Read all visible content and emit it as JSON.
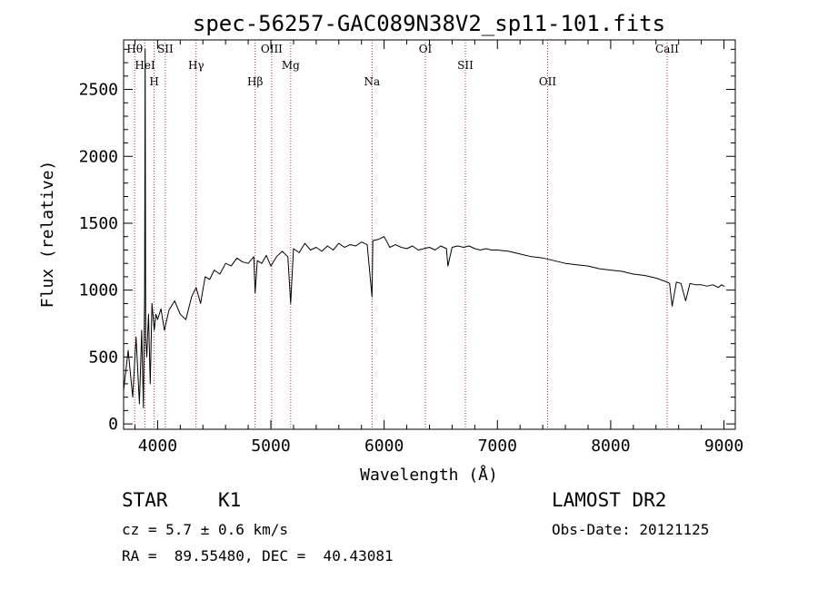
{
  "chart_data": {
    "type": "line",
    "title": "spec-56257-GAC089N38V2_sp11-101.fits",
    "xlabel": "Wavelength (Å)",
    "ylabel": "Flux (relative)",
    "xlim": [
      3700,
      9100
    ],
    "ylim": [
      -40,
      2870
    ],
    "xticks": [
      4000,
      5000,
      6000,
      7000,
      8000,
      9000
    ],
    "xtick_labels": [
      "4000",
      "5000",
      "6000",
      "7000",
      "8000",
      "9000"
    ],
    "yticks": [
      0,
      500,
      1000,
      1500,
      2000,
      2500
    ],
    "ytick_labels": [
      "0",
      "500",
      "1000",
      "1500",
      "2000",
      "2500"
    ],
    "grid": false,
    "series": [
      {
        "color": "#000000",
        "x": [
          3700,
          3740,
          3780,
          3810,
          3840,
          3860,
          3875,
          3885,
          3890,
          3895,
          3905,
          3920,
          3935,
          3950,
          3970,
          3985,
          4000,
          4030,
          4060,
          4100,
          4150,
          4200,
          4250,
          4300,
          4340,
          4380,
          4420,
          4460,
          4500,
          4550,
          4600,
          4650,
          4700,
          4750,
          4800,
          4850,
          4861,
          4880,
          4920,
          4960,
          5000,
          5050,
          5100,
          5150,
          5175,
          5200,
          5250,
          5300,
          5350,
          5400,
          5450,
          5500,
          5550,
          5600,
          5650,
          5700,
          5750,
          5800,
          5850,
          5893,
          5900,
          5950,
          6000,
          6050,
          6100,
          6150,
          6200,
          6250,
          6300,
          6350,
          6400,
          6450,
          6500,
          6550,
          6563,
          6600,
          6650,
          6700,
          6750,
          6800,
          6850,
          6900,
          6950,
          7000,
          7100,
          7200,
          7300,
          7400,
          7500,
          7600,
          7700,
          7800,
          7900,
          8000,
          8100,
          8200,
          8300,
          8400,
          8498,
          8520,
          8542,
          8580,
          8620,
          8662,
          8700,
          8750,
          8800,
          8850,
          8900,
          8950,
          8980,
          9000,
          9005
        ],
        "y": [
          250,
          550,
          200,
          650,
          150,
          700,
          120,
          950,
          2800,
          650,
          500,
          820,
          300,
          900,
          700,
          820,
          780,
          860,
          700,
          850,
          920,
          820,
          780,
          950,
          1020,
          900,
          1100,
          1080,
          1150,
          1120,
          1200,
          1180,
          1240,
          1210,
          1200,
          1250,
          980,
          1220,
          1200,
          1260,
          1180,
          1250,
          1290,
          1250,
          900,
          1310,
          1280,
          1350,
          1300,
          1320,
          1290,
          1330,
          1300,
          1350,
          1320,
          1340,
          1330,
          1360,
          1340,
          950,
          1370,
          1380,
          1400,
          1320,
          1340,
          1320,
          1310,
          1330,
          1300,
          1310,
          1320,
          1300,
          1330,
          1310,
          1180,
          1320,
          1330,
          1320,
          1330,
          1310,
          1300,
          1310,
          1300,
          1300,
          1290,
          1270,
          1250,
          1240,
          1220,
          1200,
          1190,
          1180,
          1160,
          1150,
          1140,
          1120,
          1110,
          1090,
          1060,
          1050,
          880,
          1060,
          1050,
          920,
          1050,
          1040,
          1040,
          1030,
          1040,
          1020,
          1040,
          1030,
          1030
        ]
      }
    ],
    "annotations": [
      {
        "label": "Hθ",
        "x": 3798
      },
      {
        "label": "HeI",
        "x": 3889
      },
      {
        "label": "H",
        "x": 3970
      },
      {
        "label": "SII",
        "x": 4068
      },
      {
        "label": "Hγ",
        "x": 4340
      },
      {
        "label": "Hβ",
        "x": 4861
      },
      {
        "label": "OIII",
        "x": 5007
      },
      {
        "label": "Mg",
        "x": 5175
      },
      {
        "label": "Na",
        "x": 5893
      },
      {
        "label": "OI",
        "x": 6364
      },
      {
        "label": "SII",
        "x": 6717
      },
      {
        "label": "OII",
        "x": 7443
      },
      {
        "label": "CaII",
        "x": 8498
      }
    ],
    "annotation_color": "#b03030"
  },
  "info": {
    "object_class": "STAR",
    "subclass": "K1",
    "survey": "LAMOST DR2",
    "cz": "cz = 5.7 ± 0.6 km/s",
    "obs_date": "Obs-Date: 20121125",
    "coords": "RA =  89.55480, DEC =  40.43081"
  }
}
